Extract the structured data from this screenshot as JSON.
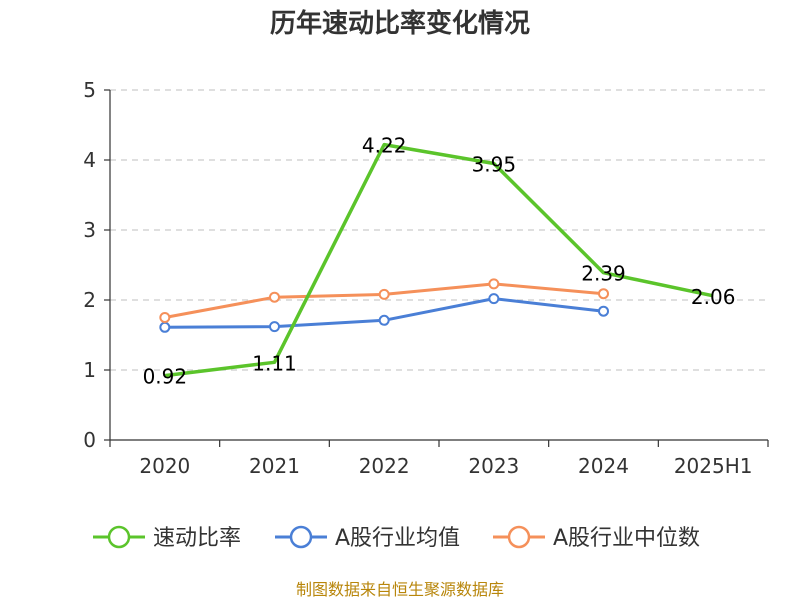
{
  "chart_data": {
    "type": "line",
    "title": "历年速动比率变化情况",
    "categories": [
      "2020",
      "2021",
      "2022",
      "2023",
      "2024",
      "2025H1"
    ],
    "y_ticks": [
      "0",
      "1",
      "2",
      "3",
      "4",
      "5"
    ],
    "ylim": [
      0,
      5
    ],
    "grid": true,
    "legend_position": "bottom",
    "series": [
      {
        "name": "速动比率",
        "color": "#5bc42b",
        "values": [
          0.92,
          1.11,
          4.22,
          3.95,
          2.39,
          2.06
        ],
        "labels": [
          "0.92",
          "1.11",
          "4.22",
          "3.95",
          "2.39",
          "2.06"
        ],
        "show_points": false
      },
      {
        "name": "A股行业均值",
        "color": "#4a7fd6",
        "values": [
          1.61,
          1.62,
          1.71,
          2.02,
          1.84,
          null
        ],
        "show_points": true
      },
      {
        "name": "A股行业中位数",
        "color": "#f5905a",
        "values": [
          1.75,
          2.04,
          2.08,
          2.23,
          2.09,
          null
        ],
        "show_points": true
      }
    ],
    "source": "制图数据来自恒生聚源数据库"
  }
}
